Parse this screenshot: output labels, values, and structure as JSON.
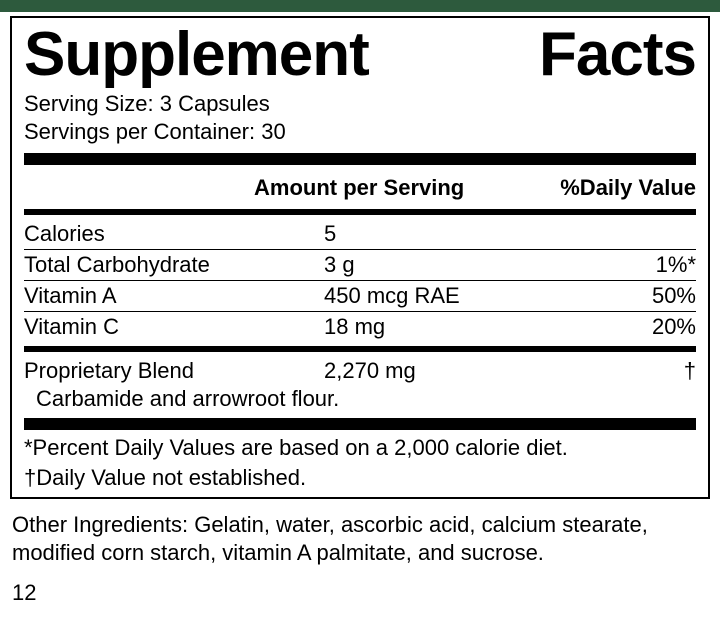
{
  "topBar": {
    "color": "#2d5a3d"
  },
  "title": {
    "word1": "Supplement",
    "word2": "Facts"
  },
  "serving": {
    "sizeLabel": "Serving Size: 3 Capsules",
    "perContainerLabel": "Servings per Container: 30"
  },
  "columns": {
    "amount": "Amount per Serving",
    "dailyValue": "%Daily Value"
  },
  "nutrients": [
    {
      "name": "Calories",
      "amount": "5",
      "dv": ""
    },
    {
      "name": "Total Carbohydrate",
      "amount": "3 g",
      "dv": "1%*"
    },
    {
      "name": "Vitamin A",
      "amount": "450 mcg RAE",
      "dv": "50%"
    },
    {
      "name": "Vitamin C",
      "amount": "18 mg",
      "dv": "20%"
    }
  ],
  "blend": {
    "name": "Proprietary Blend",
    "amount": "2,270 mg",
    "dv": "†",
    "ingredients": "Carbamide and arrowroot flour."
  },
  "footnotes": {
    "pdv": "*Percent Daily Values are based on a 2,000 calorie diet.",
    "dagger": "†Daily Value not established."
  },
  "otherIngredients": "Other Ingredients: Gelatin, water, ascorbic acid, calcium stearate, modified corn starch, vitamin A palmitate, and sucrose.",
  "pageNumber": "12"
}
